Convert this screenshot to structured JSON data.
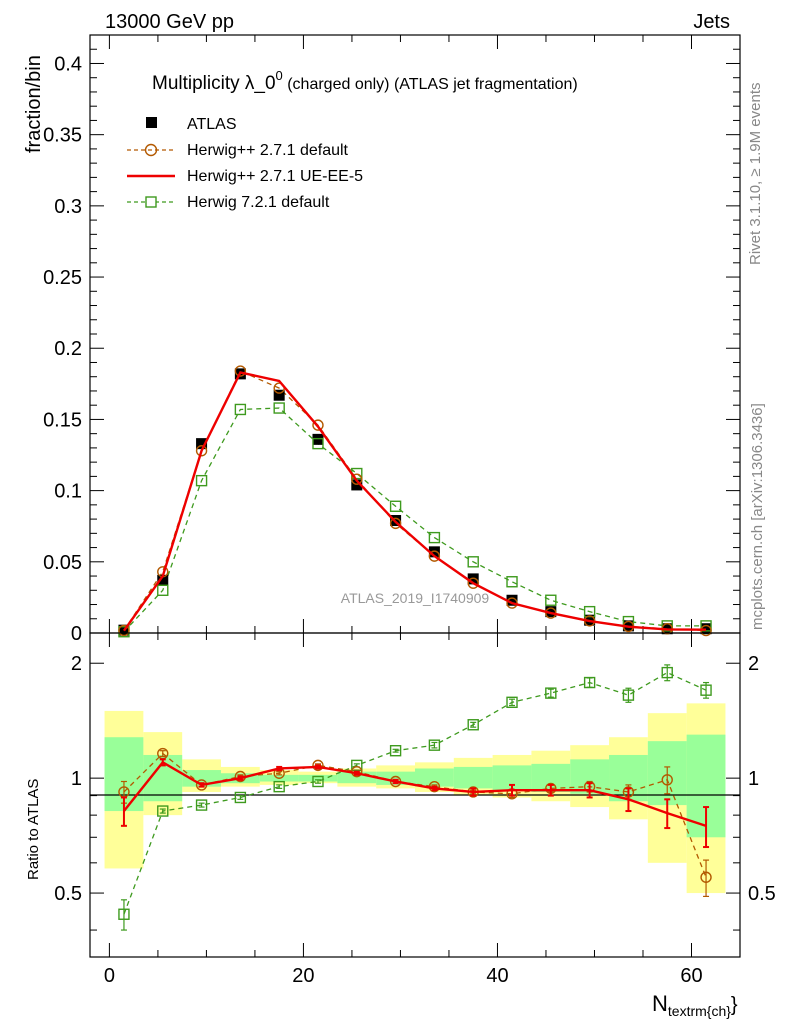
{
  "header": {
    "left": "13000 GeV pp",
    "right": "Jets"
  },
  "side_labels": {
    "rivet": "Rivet 3.1.10, ≥ 1.9M events",
    "mcplots": "mcplots.cern.ch [arXiv:1306.3436]"
  },
  "main_plot": {
    "title_main": "Multiplicity λ_0",
    "title_sup": "0",
    "title_sub": " (charged only) (ATLAS jet fragmentation)",
    "ylabel": "fraction/bin",
    "watermark": "ATLAS_2019_I1740909",
    "yticks": [
      "0",
      "0.05",
      "0.1",
      "0.15",
      "0.2",
      "0.25",
      "0.3",
      "0.35",
      "0.4"
    ]
  },
  "ratio_plot": {
    "ylabel": "Ratio to ATLAS",
    "yticks_left": [
      "0.5",
      "1",
      "2"
    ],
    "yticks_right": [
      "0.5",
      "1",
      "2"
    ]
  },
  "xaxis": {
    "label_main": "N",
    "label_sub": "textrm{ch}",
    "label_close": "}",
    "ticks": [
      "0",
      "20",
      "40",
      "60"
    ]
  },
  "legend": [
    {
      "label": "ATLAS",
      "style": "black-square"
    },
    {
      "label": "Herwig++ 2.7.1 default",
      "style": "brown-circle"
    },
    {
      "label": "Herwig++ 2.7.1 UE-EE-5",
      "style": "red-line"
    },
    {
      "label": "Herwig 7.2.1 default",
      "style": "green-square"
    }
  ],
  "colors": {
    "atlas": "#000000",
    "herwig_default": "#b35900",
    "ue_ee5": "#ee0000",
    "herwig7": "#3e9a1e",
    "band_inner": "#99ff99",
    "band_outer": "#ffff99"
  },
  "chart_data": {
    "type": "line",
    "x": [
      1.5,
      5.5,
      9.5,
      13.5,
      17.5,
      21.5,
      25.5,
      29.5,
      33.5,
      37.5,
      41.5,
      45.5,
      49.5,
      53.5,
      57.5,
      61.5
    ],
    "bin_edges": [
      -0.5,
      3.5,
      7.5,
      11.5,
      15.5,
      19.5,
      23.5,
      27.5,
      31.5,
      35.5,
      39.5,
      43.5,
      47.5,
      51.5,
      55.5,
      59.5,
      63.5
    ],
    "xlim": [
      -2,
      65
    ],
    "main_ylim": [
      0,
      0.42
    ],
    "ratio_ylim": [
      0.34,
      2.4
    ],
    "series": [
      {
        "name": "ATLAS",
        "values": [
          0.002,
          0.037,
          0.133,
          0.182,
          0.167,
          0.136,
          0.104,
          0.079,
          0.057,
          0.038,
          0.023,
          0.015,
          0.009,
          0.005,
          0.003,
          0.003
        ]
      },
      {
        "name": "Herwig++ 2.7.1 default",
        "values": [
          0.0018,
          0.043,
          0.128,
          0.184,
          0.172,
          0.146,
          0.108,
          0.077,
          0.054,
          0.035,
          0.021,
          0.014,
          0.0085,
          0.0046,
          0.003,
          0.0017
        ]
      },
      {
        "name": "Herwig++ 2.7.1 UE-EE-5",
        "values": [
          0.0016,
          0.04,
          0.128,
          0.183,
          0.177,
          0.145,
          0.107,
          0.078,
          0.054,
          0.035,
          0.021,
          0.014,
          0.0084,
          0.0044,
          0.0025,
          0.0023
        ]
      },
      {
        "name": "Herwig 7.2.1 default",
        "values": [
          0.0009,
          0.03,
          0.107,
          0.157,
          0.158,
          0.133,
          0.112,
          0.089,
          0.067,
          0.05,
          0.036,
          0.023,
          0.015,
          0.008,
          0.005,
          0.005
        ]
      }
    ],
    "ratio_series": [
      {
        "name": "Herwig++ 2.7.1 default",
        "values": [
          0.92,
          1.16,
          0.96,
          1.01,
          1.03,
          1.08,
          1.04,
          0.98,
          0.95,
          0.92,
          0.91,
          0.94,
          0.95,
          0.92,
          0.99,
          0.55
        ],
        "errors": [
          0.06,
          0.02,
          0.01,
          0.01,
          0.01,
          0.01,
          0.01,
          0.01,
          0.01,
          0.01,
          0.02,
          0.02,
          0.03,
          0.04,
          0.08,
          0.06
        ]
      },
      {
        "name": "Herwig++ 2.7.1 UE-EE-5",
        "values": [
          0.82,
          1.1,
          0.96,
          1.0,
          1.06,
          1.07,
          1.03,
          0.98,
          0.94,
          0.92,
          0.93,
          0.93,
          0.93,
          0.88,
          0.81,
          0.75
        ],
        "errors": [
          0.07,
          0.02,
          0.01,
          0.01,
          0.01,
          0.01,
          0.01,
          0.01,
          0.01,
          0.02,
          0.03,
          0.03,
          0.04,
          0.06,
          0.07,
          0.09
        ]
      },
      {
        "name": "Herwig 7.2.1 default",
        "values": [
          0.44,
          0.82,
          0.85,
          0.89,
          0.95,
          0.98,
          1.08,
          1.18,
          1.22,
          1.38,
          1.58,
          1.67,
          1.78,
          1.65,
          1.89,
          1.7
        ],
        "errors": [
          0.04,
          0.01,
          0.01,
          0.01,
          0.01,
          0.01,
          0.01,
          0.01,
          0.02,
          0.02,
          0.03,
          0.04,
          0.05,
          0.07,
          0.09,
          0.08
        ]
      }
    ],
    "uncertainty_inner": [
      [
        0.82,
        1.28
      ],
      [
        0.87,
        1.15
      ],
      [
        0.95,
        1.05
      ],
      [
        0.97,
        1.03
      ],
      [
        0.98,
        1.02
      ],
      [
        0.98,
        1.02
      ],
      [
        0.97,
        1.04
      ],
      [
        0.96,
        1.04
      ],
      [
        0.95,
        1.06
      ],
      [
        0.94,
        1.07
      ],
      [
        0.93,
        1.08
      ],
      [
        0.92,
        1.09
      ],
      [
        0.91,
        1.12
      ],
      [
        0.87,
        1.15
      ],
      [
        0.85,
        1.25
      ],
      [
        0.7,
        1.3
      ]
    ],
    "uncertainty_outer": [
      [
        0.58,
        1.5
      ],
      [
        0.8,
        1.32
      ],
      [
        0.92,
        1.12
      ],
      [
        0.95,
        1.07
      ],
      [
        0.96,
        1.05
      ],
      [
        0.97,
        1.04
      ],
      [
        0.95,
        1.06
      ],
      [
        0.94,
        1.08
      ],
      [
        0.92,
        1.1
      ],
      [
        0.9,
        1.13
      ],
      [
        0.89,
        1.15
      ],
      [
        0.87,
        1.18
      ],
      [
        0.84,
        1.22
      ],
      [
        0.78,
        1.28
      ],
      [
        0.6,
        1.48
      ],
      [
        0.5,
        1.57
      ]
    ]
  }
}
